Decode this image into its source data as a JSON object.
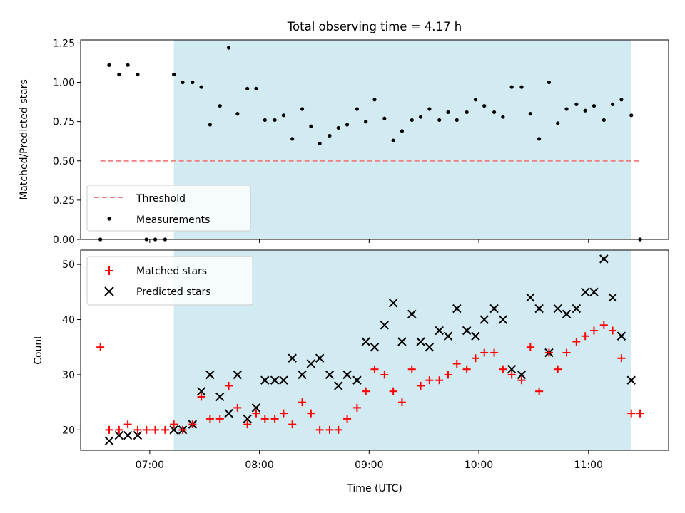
{
  "figure": {
    "title": "Total observing time = 4.17 h",
    "xlabel": "Time (UTC)",
    "xticks": [
      {
        "value": 7,
        "label": "07:00"
      },
      {
        "value": 8,
        "label": "08:00"
      },
      {
        "value": 9,
        "label": "09:00"
      },
      {
        "value": 10,
        "label": "10:00"
      },
      {
        "value": 11,
        "label": "11:00"
      }
    ],
    "observing_window_hours": [
      7.22,
      11.39
    ],
    "shading_color": "#add8e6"
  },
  "chart_data": [
    {
      "type": "scatter",
      "ylabel": "Matched/Predicted stars",
      "xlim": [
        6.37,
        11.73
      ],
      "ylim": [
        0.0,
        1.27
      ],
      "yticks": [
        "0.00",
        "0.25",
        "0.50",
        "0.75",
        "1.00",
        "1.25"
      ],
      "legend_position": "lower-left",
      "threshold": {
        "name": "Threshold",
        "value": 0.5,
        "x_range": [
          6.55,
          11.48
        ],
        "color": "#f08080"
      },
      "series": [
        {
          "name": "Measurements",
          "color": "#000000",
          "x": [
            6.55,
            6.63,
            6.72,
            6.8,
            6.89,
            6.97,
            7.05,
            7.14,
            7.22,
            7.3,
            7.39,
            7.47,
            7.55,
            7.64,
            7.72,
            7.8,
            7.89,
            7.97,
            8.05,
            8.14,
            8.22,
            8.3,
            8.39,
            8.47,
            8.55,
            8.64,
            8.72,
            8.8,
            8.89,
            8.97,
            9.05,
            9.14,
            9.22,
            9.3,
            9.39,
            9.47,
            9.55,
            9.64,
            9.72,
            9.8,
            9.89,
            9.97,
            10.05,
            10.14,
            10.22,
            10.3,
            10.39,
            10.47,
            10.55,
            10.64,
            10.72,
            10.8,
            10.89,
            10.97,
            11.05,
            11.14,
            11.22,
            11.3,
            11.39,
            11.47
          ],
          "y": [
            0.0,
            1.11,
            1.05,
            1.11,
            1.05,
            0.0,
            0.0,
            0.0,
            1.05,
            1.0,
            1.0,
            0.97,
            0.73,
            0.85,
            1.22,
            0.8,
            0.96,
            0.96,
            0.76,
            0.76,
            0.79,
            0.64,
            0.83,
            0.72,
            0.61,
            0.66,
            0.71,
            0.73,
            0.83,
            0.75,
            0.89,
            0.77,
            0.63,
            0.69,
            0.76,
            0.78,
            0.83,
            0.76,
            0.81,
            0.76,
            0.81,
            0.89,
            0.85,
            0.81,
            0.78,
            0.97,
            0.97,
            0.8,
            0.64,
            1.0,
            0.74,
            0.83,
            0.86,
            0.82,
            0.85,
            0.76,
            0.86,
            0.89,
            0.79,
            0.0
          ]
        }
      ]
    },
    {
      "type": "scatter",
      "ylabel": "Count",
      "xlim": [
        6.37,
        11.73
      ],
      "ylim": [
        16.3,
        52.6
      ],
      "yticks": [
        "20",
        "30",
        "40",
        "50"
      ],
      "legend_position": "upper-left",
      "series": [
        {
          "name": "Matched stars",
          "color": "#ff0000",
          "marker": "plus",
          "x": [
            6.55,
            6.63,
            6.72,
            6.8,
            6.89,
            6.97,
            7.05,
            7.14,
            7.22,
            7.3,
            7.39,
            7.47,
            7.55,
            7.64,
            7.72,
            7.8,
            7.89,
            7.97,
            8.05,
            8.14,
            8.22,
            8.3,
            8.39,
            8.47,
            8.55,
            8.64,
            8.72,
            8.8,
            8.89,
            8.97,
            9.05,
            9.14,
            9.22,
            9.3,
            9.39,
            9.47,
            9.55,
            9.64,
            9.72,
            9.8,
            9.89,
            9.97,
            10.05,
            10.14,
            10.22,
            10.3,
            10.39,
            10.47,
            10.55,
            10.64,
            10.72,
            10.8,
            10.89,
            10.97,
            11.05,
            11.14,
            11.22,
            11.3,
            11.39,
            11.47
          ],
          "y": [
            35,
            20,
            20,
            21,
            20,
            20,
            20,
            20,
            21,
            20,
            21,
            26,
            22,
            22,
            28,
            24,
            21,
            23,
            22,
            22,
            23,
            21,
            25,
            23,
            20,
            20,
            20,
            22,
            24,
            27,
            31,
            30,
            27,
            25,
            31,
            28,
            29,
            29,
            30,
            32,
            31,
            33,
            34,
            34,
            31,
            30,
            29,
            35,
            27,
            34,
            31,
            34,
            36,
            37,
            38,
            39,
            38,
            33,
            23,
            23
          ]
        },
        {
          "name": "Predicted stars",
          "color": "#000000",
          "marker": "x",
          "x": [
            6.63,
            6.72,
            6.8,
            6.89,
            7.22,
            7.3,
            7.39,
            7.47,
            7.55,
            7.64,
            7.72,
            7.8,
            7.89,
            7.97,
            8.05,
            8.14,
            8.22,
            8.3,
            8.39,
            8.47,
            8.55,
            8.64,
            8.72,
            8.8,
            8.89,
            8.97,
            9.05,
            9.14,
            9.22,
            9.3,
            9.39,
            9.47,
            9.55,
            9.64,
            9.72,
            9.8,
            9.89,
            9.97,
            10.05,
            10.14,
            10.22,
            10.3,
            10.39,
            10.47,
            10.55,
            10.64,
            10.72,
            10.8,
            10.89,
            10.97,
            11.05,
            11.14,
            11.22,
            11.3,
            11.39
          ],
          "y": [
            18,
            19,
            19,
            19,
            20,
            20,
            21,
            27,
            30,
            26,
            23,
            30,
            22,
            24,
            29,
            29,
            29,
            33,
            30,
            32,
            33,
            30,
            28,
            30,
            29,
            36,
            35,
            39,
            43,
            36,
            41,
            36,
            35,
            38,
            37,
            42,
            38,
            37,
            40,
            42,
            40,
            31,
            30,
            44,
            42,
            34,
            42,
            41,
            42,
            45,
            45,
            51,
            44,
            37,
            29
          ]
        }
      ]
    }
  ]
}
